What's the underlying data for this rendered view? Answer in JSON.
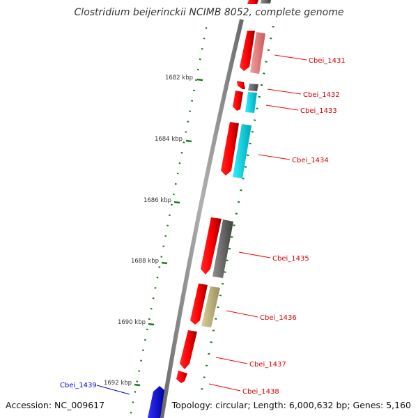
{
  "title": "Clostridium beijerinckii NCIMB 8052, complete genome",
  "footer": {
    "accession": "Accession: NC_009617",
    "info": "Topology: circular; Length: 6,000,632 bp; Genes: 5,160"
  },
  "ticks": [
    "1682 kbp",
    "1684 kbp",
    "1686 kbp",
    "1688 kbp",
    "1690 kbp",
    "1692 kbp"
  ],
  "gene_labels": [
    {
      "name": "Cbei_1431",
      "color": "#d40000"
    },
    {
      "name": "Cbei_1432",
      "color": "#d40000"
    },
    {
      "name": "Cbei_1433",
      "color": "#d40000"
    },
    {
      "name": "Cbei_1434",
      "color": "#d40000"
    },
    {
      "name": "Cbei_1435",
      "color": "#d40000"
    },
    {
      "name": "Cbei_1436",
      "color": "#d40000"
    },
    {
      "name": "Cbei_1437",
      "color": "#d40000"
    },
    {
      "name": "Cbei_1438",
      "color": "#d40000"
    },
    {
      "name": "Cbei_1439",
      "color": "#0000cc"
    }
  ],
  "colors": {
    "cds": "#ff0000",
    "cds_reverse": "#0000ff",
    "gc_skew": "#1a7a1a",
    "backbone": "#8a8a8a",
    "cog_pink": "#f08a8a",
    "cog_cyan": "#00e5ee",
    "cog_gray": "#707070",
    "cog_khaki": "#c8c080"
  }
}
